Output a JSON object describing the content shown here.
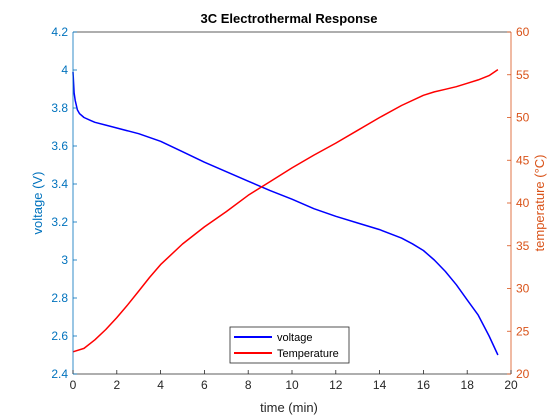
{
  "chart_data": {
    "type": "line",
    "title": "3C Electrothermal Response",
    "xlabel": "time (min)",
    "ylabel_left": "voltage (V)",
    "ylabel_right": "temperature (°C)",
    "xlim": [
      0,
      20
    ],
    "ylim_left": [
      2.4,
      4.2
    ],
    "ylim_right": [
      20,
      60
    ],
    "xticks": [
      "0",
      "2",
      "4",
      "6",
      "8",
      "10",
      "12",
      "14",
      "16",
      "18",
      "20"
    ],
    "yticks_left": [
      "2.4",
      "2.6",
      "2.8",
      "3",
      "3.2",
      "3.4",
      "3.6",
      "3.8",
      "4",
      "4.2"
    ],
    "yticks_right": [
      "20",
      "25",
      "30",
      "35",
      "40",
      "45",
      "50",
      "55",
      "60"
    ],
    "grid": false,
    "legend_position": "bottom-center",
    "colors": {
      "left_axis": "#0072BD",
      "right_axis": "#D95319",
      "voltage": "#0000FF",
      "temperature": "#FF0000"
    },
    "series": [
      {
        "name": "voltage",
        "axis": "left",
        "color": "#0000FF",
        "x": [
          0,
          0.05,
          0.1,
          0.2,
          0.3,
          0.5,
          0.8,
          1,
          1.5,
          2,
          3,
          4,
          5,
          6,
          7,
          8,
          9,
          10,
          11,
          12,
          13,
          14,
          15,
          15.5,
          16,
          16.5,
          17,
          17.5,
          18,
          18.5,
          19,
          19.4
        ],
        "y": [
          3.99,
          3.88,
          3.84,
          3.79,
          3.77,
          3.75,
          3.735,
          3.725,
          3.71,
          3.695,
          3.665,
          3.625,
          3.57,
          3.515,
          3.465,
          3.415,
          3.365,
          3.32,
          3.27,
          3.23,
          3.195,
          3.16,
          3.115,
          3.085,
          3.05,
          3.0,
          2.94,
          2.87,
          2.79,
          2.71,
          2.6,
          2.5
        ]
      },
      {
        "name": "Temperature",
        "axis": "right",
        "color": "#FF0000",
        "x": [
          0,
          0.5,
          1,
          1.5,
          2,
          2.5,
          3,
          3.5,
          4,
          5,
          6,
          7,
          8,
          9,
          10,
          11,
          12,
          13,
          14,
          15,
          16,
          16.5,
          17,
          17.5,
          18,
          18.5,
          19,
          19.4
        ],
        "y": [
          22.6,
          23.0,
          24.0,
          25.2,
          26.6,
          28.1,
          29.7,
          31.3,
          32.8,
          35.2,
          37.2,
          39.0,
          40.9,
          42.5,
          44.1,
          45.6,
          47.0,
          48.5,
          50.0,
          51.4,
          52.6,
          53.0,
          53.3,
          53.6,
          54.0,
          54.4,
          54.9,
          55.6
        ]
      }
    ]
  }
}
